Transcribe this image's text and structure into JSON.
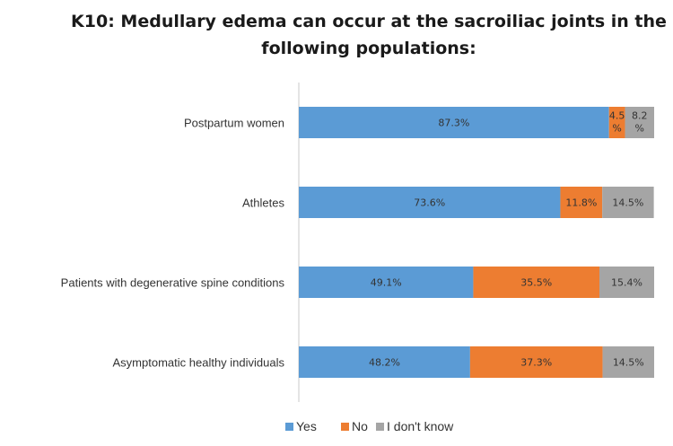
{
  "chart_data": {
    "type": "bar",
    "orientation": "horizontal",
    "stacked": true,
    "title": "K10: Medullary edema can occur at the sacroiliac joints in the following populations:",
    "title_lines": [
      "K10: Medullary edema can occur at the sacroiliac joints in the",
      "following populations:"
    ],
    "categories": [
      "Postpartum women",
      "Athletes",
      "Patients with degenerative spine conditions",
      "Asymptomatic healthy individuals"
    ],
    "series": [
      {
        "name": "Yes",
        "values": [
          87.3,
          73.6,
          49.1,
          48.2
        ],
        "labels": [
          "87.3%",
          "73.6%",
          "49.1%",
          "48.2%"
        ],
        "color": "#5B9BD5"
      },
      {
        "name": "No",
        "values": [
          4.5,
          11.8,
          35.5,
          37.3
        ],
        "labels": [
          "4.5%",
          "11.8%",
          "35.5%",
          "37.3%"
        ],
        "color": "#ED7D31"
      },
      {
        "name": "I don't know",
        "values": [
          8.2,
          14.5,
          15.4,
          14.5
        ],
        "labels": [
          "8.2%",
          "14.5%",
          "15.4%",
          "14.5%"
        ],
        "color": "#A5A5A5"
      }
    ],
    "xlim": [
      0,
      100
    ],
    "grid": false,
    "legend": "bottom"
  }
}
